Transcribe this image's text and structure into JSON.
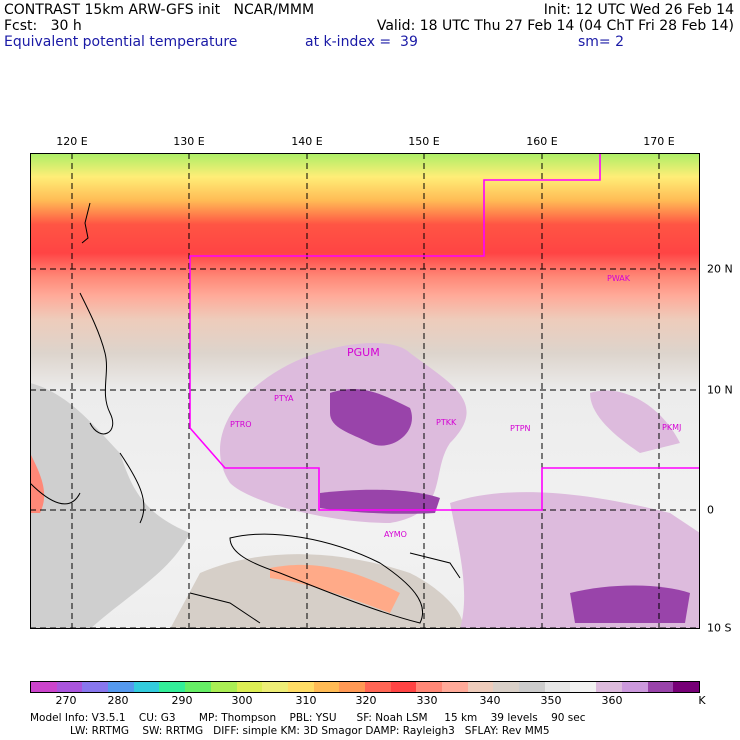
{
  "header": {
    "line1_left": "CONTRAST 15km ARW-GFS init   NCAR/MMM",
    "line1_right": "Init: 12 UTC Wed 26 Feb 14",
    "line2_left": "Fcst:   30 h",
    "line2_right": "Valid: 18 UTC Thu 27 Feb 14 (04 ChT Fri 28 Feb 14)",
    "line3_left": "Equivalent potential temperature",
    "line3_mid": "at k-index =  39",
    "line3_right": "sm= 2"
  },
  "map": {
    "longitude_labels": [
      "120 E",
      "130 E",
      "140 E",
      "150 E",
      "160 E",
      "170 E"
    ],
    "longitudes": [
      120,
      130,
      140,
      150,
      160,
      170
    ],
    "latitude_labels": [
      "20 N",
      "10 N",
      "0",
      "10 S"
    ],
    "latitudes": [
      20,
      10,
      0,
      -10
    ],
    "stations": [
      {
        "label": "PGUM",
        "lon": 144.8,
        "lat": 13.5
      },
      {
        "label": "PTYA",
        "lon": 138.1,
        "lat": 9.5
      },
      {
        "label": "PTRO",
        "lon": 134.5,
        "lat": 7.4
      },
      {
        "label": "PTKK",
        "lon": 151.8,
        "lat": 7.5
      },
      {
        "label": "PTPN",
        "lon": 158.2,
        "lat": 6.9
      },
      {
        "label": "PKMJ",
        "lon": 171.4,
        "lat": 7.1
      },
      {
        "label": "PWAK",
        "lon": 166.6,
        "lat": 19.3
      },
      {
        "label": "AYMO",
        "lon": 147.4,
        "lat": -2.0
      }
    ],
    "colors": {
      "domain_outline": "#ff00ff",
      "station_text": "#d400d4"
    }
  },
  "colorbar": {
    "unit": "K",
    "tick_labels": [
      "270",
      "280",
      "290",
      "300",
      "310",
      "320",
      "330",
      "340",
      "350",
      "360"
    ],
    "colors": [
      "#cc44cc",
      "#aa55dd",
      "#8877ee",
      "#5599ee",
      "#33ccdd",
      "#33ee99",
      "#66ee66",
      "#aaee55",
      "#ddee55",
      "#eeee77",
      "#ffdd66",
      "#ffbb55",
      "#ff9955",
      "#ff6655",
      "#ff4444",
      "#ff8877",
      "#ffaa99",
      "#eeccbb",
      "#d9d0c8",
      "#cccccc",
      "#e6e6e6",
      "#f2f2f2",
      "#ddbbdd",
      "#cc99dd",
      "#9944aa",
      "#770077"
    ]
  },
  "model_info": {
    "line1": "Model Info: V3.5.1    CU: G3       MP: Thompson    PBL: YSU      SF: Noah LSM     15 km    39 levels    90 sec",
    "line2": "            LW: RRTMG    SW: RRTMG   DIFF: simple KM: 3D Smagor DAMP: Rayleigh3   SFLAY: Rev MM5"
  }
}
